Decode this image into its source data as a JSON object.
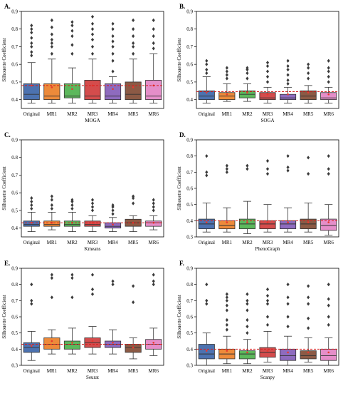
{
  "chart_data": [
    {
      "panel": "A.",
      "type": "box",
      "xlabel": "MOGA",
      "ylabel": "Silhouette Coefficient",
      "ylim": [
        0.35,
        0.9
      ],
      "yticks": [
        0.4,
        0.5,
        0.6,
        0.7,
        0.8,
        0.9
      ],
      "ref_line": 0.48,
      "categories": [
        "Original",
        "MR1",
        "MR2",
        "MR3",
        "MR4",
        "MR5",
        "MR6"
      ],
      "colors": [
        "#4c72b0",
        "#ed8a3a",
        "#5cb85c",
        "#d44c4c",
        "#8e6bbf",
        "#8c5a45",
        "#e58ec9"
      ],
      "boxes": [
        {
          "low": 0.38,
          "q1": 0.4,
          "median": 0.43,
          "q3": 0.49,
          "high": 0.61,
          "mean": 0.48,
          "outliers": [
            0.65,
            0.67,
            0.7,
            0.72,
            0.75,
            0.78,
            0.8,
            0.82
          ]
        },
        {
          "low": 0.38,
          "q1": 0.4,
          "median": 0.42,
          "q3": 0.49,
          "high": 0.63,
          "mean": 0.47,
          "outliers": [
            0.66,
            0.7,
            0.72,
            0.74,
            0.77,
            0.81,
            0.85
          ]
        },
        {
          "low": 0.38,
          "q1": 0.41,
          "median": 0.42,
          "q3": 0.49,
          "high": 0.58,
          "mean": 0.46,
          "outliers": [
            0.66,
            0.71,
            0.76,
            0.79,
            0.82,
            0.84
          ]
        },
        {
          "low": 0.38,
          "q1": 0.4,
          "median": 0.42,
          "q3": 0.51,
          "high": 0.63,
          "mean": 0.48,
          "outliers": [
            0.66,
            0.7,
            0.74,
            0.77,
            0.8,
            0.83,
            0.87
          ]
        },
        {
          "low": 0.38,
          "q1": 0.4,
          "median": 0.42,
          "q3": 0.49,
          "high": 0.53,
          "mean": 0.46,
          "outliers": [
            0.56,
            0.62,
            0.66,
            0.7,
            0.73,
            0.76,
            0.8,
            0.83
          ]
        },
        {
          "low": 0.38,
          "q1": 0.4,
          "median": 0.43,
          "q3": 0.5,
          "high": 0.63,
          "mean": 0.47,
          "outliers": [
            0.66,
            0.7,
            0.72,
            0.76,
            0.8,
            0.85
          ]
        },
        {
          "low": 0.38,
          "q1": 0.4,
          "median": 0.42,
          "q3": 0.51,
          "high": 0.66,
          "mean": 0.48,
          "outliers": [
            0.69,
            0.72,
            0.76,
            0.8,
            0.85
          ]
        }
      ]
    },
    {
      "panel": "B.",
      "type": "box",
      "xlabel": "SOGA",
      "ylabel": "Silhouette Coefficient",
      "ylim": [
        0.35,
        0.9
      ],
      "yticks": [
        0.4,
        0.5,
        0.6,
        0.7,
        0.8,
        0.9
      ],
      "ref_line": 0.445,
      "categories": [
        "Original",
        "MR1",
        "MR2",
        "MR3",
        "MR4",
        "MR5",
        "MR6"
      ],
      "colors": [
        "#4c72b0",
        "#ed8a3a",
        "#5cb85c",
        "#d44c4c",
        "#8e6bbf",
        "#8c5a45",
        "#e58ec9"
      ],
      "boxes": [
        {
          "low": 0.38,
          "q1": 0.4,
          "median": 0.42,
          "q3": 0.45,
          "high": 0.53,
          "mean": 0.44,
          "outliers": [
            0.55,
            0.57,
            0.6,
            0.62
          ]
        },
        {
          "low": 0.39,
          "q1": 0.4,
          "median": 0.42,
          "q3": 0.44,
          "high": 0.49,
          "mean": 0.43,
          "outliers": [
            0.52,
            0.54,
            0.56,
            0.58
          ]
        },
        {
          "low": 0.39,
          "q1": 0.41,
          "median": 0.43,
          "q3": 0.45,
          "high": 0.49,
          "mean": 0.44,
          "outliers": [
            0.52,
            0.55,
            0.57,
            0.58
          ]
        },
        {
          "low": 0.38,
          "q1": 0.4,
          "median": 0.41,
          "q3": 0.44,
          "high": 0.47,
          "mean": 0.43,
          "outliers": [
            0.5,
            0.53,
            0.56,
            0.59,
            0.61
          ]
        },
        {
          "low": 0.38,
          "q1": 0.4,
          "median": 0.41,
          "q3": 0.43,
          "high": 0.47,
          "mean": 0.43,
          "outliers": [
            0.49,
            0.51,
            0.54,
            0.57,
            0.59,
            0.62
          ]
        },
        {
          "low": 0.38,
          "q1": 0.4,
          "median": 0.42,
          "q3": 0.45,
          "high": 0.48,
          "mean": 0.44,
          "outliers": [
            0.52,
            0.55,
            0.58,
            0.6
          ]
        },
        {
          "low": 0.38,
          "q1": 0.4,
          "median": 0.41,
          "q3": 0.44,
          "high": 0.47,
          "mean": 0.43,
          "outliers": [
            0.5,
            0.53,
            0.56,
            0.58,
            0.62
          ]
        }
      ]
    },
    {
      "panel": "C.",
      "type": "box",
      "xlabel": "Kmeans",
      "ylabel": "Silhouette Coefficient",
      "ylim": [
        0.35,
        0.9
      ],
      "yticks": [
        0.4,
        0.5,
        0.6,
        0.7,
        0.8,
        0.9
      ],
      "ref_line": 0.43,
      "categories": [
        "Original",
        "MR1",
        "MR2",
        "MR3",
        "MR4",
        "MR5",
        "MR6"
      ],
      "colors": [
        "#4c72b0",
        "#ed8a3a",
        "#5cb85c",
        "#d44c4c",
        "#8e6bbf",
        "#8c5a45",
        "#e58ec9"
      ],
      "boxes": [
        {
          "low": 0.38,
          "q1": 0.41,
          "median": 0.42,
          "q3": 0.44,
          "high": 0.49,
          "mean": 0.43,
          "outliers": [
            0.51,
            0.53,
            0.55,
            0.57
          ]
        },
        {
          "low": 0.39,
          "q1": 0.41,
          "median": 0.42,
          "q3": 0.44,
          "high": 0.49,
          "mean": 0.43,
          "outliers": [
            0.51,
            0.53,
            0.56,
            0.58
          ]
        },
        {
          "low": 0.38,
          "q1": 0.41,
          "median": 0.42,
          "q3": 0.44,
          "high": 0.49,
          "mean": 0.43,
          "outliers": [
            0.51,
            0.53,
            0.55,
            0.56
          ]
        },
        {
          "low": 0.38,
          "q1": 0.41,
          "median": 0.42,
          "q3": 0.44,
          "high": 0.47,
          "mean": 0.43,
          "outliers": [
            0.5,
            0.52,
            0.54,
            0.56
          ]
        },
        {
          "low": 0.38,
          "q1": 0.4,
          "median": 0.41,
          "q3": 0.43,
          "high": 0.46,
          "mean": 0.42,
          "outliers": [
            0.48,
            0.5,
            0.52,
            0.53
          ]
        },
        {
          "low": 0.38,
          "q1": 0.41,
          "median": 0.43,
          "q3": 0.45,
          "high": 0.47,
          "mean": 0.43,
          "outliers": [
            0.54,
            0.57,
            0.58
          ]
        },
        {
          "low": 0.39,
          "q1": 0.41,
          "median": 0.43,
          "q3": 0.44,
          "high": 0.47,
          "mean": 0.43,
          "outliers": [
            0.5,
            0.52,
            0.54,
            0.56
          ]
        }
      ]
    },
    {
      "panel": "D.",
      "type": "box",
      "xlabel": "PhenoGraph",
      "ylabel": "Silhouette Coefficient",
      "ylim": [
        0.3,
        0.9
      ],
      "yticks": [
        0.3,
        0.4,
        0.5,
        0.6,
        0.7,
        0.8,
        0.9
      ],
      "ref_line": 0.4,
      "categories": [
        "Original",
        "MR1",
        "MR2",
        "MR3",
        "MR4",
        "MR5",
        "MR6"
      ],
      "colors": [
        "#4c72b0",
        "#ed8a3a",
        "#5cb85c",
        "#d44c4c",
        "#8e6bbf",
        "#8c5a45",
        "#e58ec9"
      ],
      "boxes": [
        {
          "low": 0.33,
          "q1": 0.35,
          "median": 0.38,
          "q3": 0.41,
          "high": 0.51,
          "mean": 0.39,
          "outliers": [
            0.68,
            0.7,
            0.8
          ]
        },
        {
          "low": 0.33,
          "q1": 0.35,
          "median": 0.37,
          "q3": 0.4,
          "high": 0.48,
          "mean": 0.39,
          "outliers": [
            0.7,
            0.72,
            0.74
          ]
        },
        {
          "low": 0.32,
          "q1": 0.35,
          "median": 0.38,
          "q3": 0.41,
          "high": 0.52,
          "mean": 0.39,
          "outliers": [
            0.72,
            0.74
          ]
        },
        {
          "low": 0.33,
          "q1": 0.35,
          "median": 0.38,
          "q3": 0.4,
          "high": 0.5,
          "mean": 0.39,
          "outliers": [
            0.69,
            0.72,
            0.77
          ]
        },
        {
          "low": 0.33,
          "q1": 0.35,
          "median": 0.38,
          "q3": 0.4,
          "high": 0.48,
          "mean": 0.39,
          "outliers": [
            0.71,
            0.73,
            0.8
          ]
        },
        {
          "low": 0.33,
          "q1": 0.35,
          "median": 0.38,
          "q3": 0.41,
          "high": 0.51,
          "mean": 0.39,
          "outliers": [
            0.69,
            0.79
          ]
        },
        {
          "low": 0.31,
          "q1": 0.34,
          "median": 0.37,
          "q3": 0.41,
          "high": 0.5,
          "mean": 0.39,
          "outliers": [
            0.69,
            0.72,
            0.8
          ]
        }
      ]
    },
    {
      "panel": "E.",
      "type": "box",
      "xlabel": "Seurat",
      "ylabel": "Silhouette Coefficient",
      "ylim": [
        0.3,
        0.9
      ],
      "yticks": [
        0.3,
        0.4,
        0.5,
        0.6,
        0.7,
        0.8,
        0.9
      ],
      "ref_line": 0.43,
      "categories": [
        "Original",
        "MR1",
        "MR2",
        "MR3",
        "MR4",
        "MR5",
        "MR6"
      ],
      "colors": [
        "#4c72b0",
        "#ed8a3a",
        "#5cb85c",
        "#d44c4c",
        "#8e6bbf",
        "#8c5a45",
        "#e58ec9"
      ],
      "boxes": [
        {
          "low": 0.33,
          "q1": 0.38,
          "median": 0.41,
          "q3": 0.44,
          "high": 0.51,
          "mean": 0.42,
          "outliers": [
            0.68,
            0.7,
            0.8
          ]
        },
        {
          "low": 0.37,
          "q1": 0.4,
          "median": 0.43,
          "q3": 0.47,
          "high": 0.52,
          "mean": 0.45,
          "outliers": [
            0.72,
            0.84,
            0.86
          ]
        },
        {
          "low": 0.37,
          "q1": 0.4,
          "median": 0.43,
          "q3": 0.45,
          "high": 0.53,
          "mean": 0.44,
          "outliers": [
            0.72,
            0.84,
            0.86
          ]
        },
        {
          "low": 0.37,
          "q1": 0.41,
          "median": 0.44,
          "q3": 0.47,
          "high": 0.54,
          "mean": 0.45,
          "outliers": [
            0.74,
            0.77,
            0.86
          ]
        },
        {
          "low": 0.37,
          "q1": 0.41,
          "median": 0.43,
          "q3": 0.45,
          "high": 0.52,
          "mean": 0.44,
          "outliers": [
            0.8,
            0.82
          ]
        },
        {
          "low": 0.34,
          "q1": 0.38,
          "median": 0.41,
          "q3": 0.43,
          "high": 0.47,
          "mean": 0.41,
          "outliers": [
            0.69,
            0.79
          ]
        },
        {
          "low": 0.36,
          "q1": 0.4,
          "median": 0.43,
          "q3": 0.46,
          "high": 0.53,
          "mean": 0.44,
          "outliers": [
            0.8,
            0.82,
            0.86
          ]
        }
      ]
    },
    {
      "panel": "F.",
      "type": "box",
      "xlabel": "Scanpy",
      "ylabel": "Silhouette Coefficient",
      "ylim": [
        0.3,
        0.9
      ],
      "yticks": [
        0.3,
        0.4,
        0.5,
        0.6,
        0.7,
        0.8,
        0.9
      ],
      "ref_line": 0.4,
      "categories": [
        "Original",
        "MR1",
        "MR2",
        "MR3",
        "MR4",
        "MR5",
        "MR6"
      ],
      "colors": [
        "#4c72b0",
        "#ed8a3a",
        "#5cb85c",
        "#d44c4c",
        "#8e6bbf",
        "#8c5a45",
        "#e58ec9"
      ],
      "boxes": [
        {
          "low": 0.3,
          "q1": 0.34,
          "median": 0.37,
          "q3": 0.43,
          "high": 0.5,
          "mean": 0.39,
          "outliers": [
            0.68,
            0.7,
            0.8
          ]
        },
        {
          "low": 0.31,
          "q1": 0.34,
          "median": 0.37,
          "q3": 0.4,
          "high": 0.48,
          "mean": 0.39,
          "outliers": [
            0.52,
            0.55,
            0.58,
            0.64,
            0.67,
            0.7,
            0.72,
            0.74
          ]
        },
        {
          "low": 0.31,
          "q1": 0.34,
          "median": 0.37,
          "q3": 0.39,
          "high": 0.46,
          "mean": 0.38,
          "outliers": [
            0.5,
            0.54,
            0.58,
            0.64,
            0.68,
            0.7,
            0.74
          ]
        },
        {
          "low": 0.32,
          "q1": 0.35,
          "median": 0.38,
          "q3": 0.41,
          "high": 0.51,
          "mean": 0.39,
          "outliers": [
            0.55,
            0.6,
            0.68,
            0.7,
            0.73,
            0.77
          ]
        },
        {
          "low": 0.3,
          "q1": 0.33,
          "median": 0.36,
          "q3": 0.4,
          "high": 0.48,
          "mean": 0.38,
          "outliers": [
            0.54,
            0.6,
            0.68,
            0.72,
            0.8
          ]
        },
        {
          "low": 0.32,
          "q1": 0.34,
          "median": 0.36,
          "q3": 0.39,
          "high": 0.47,
          "mean": 0.38,
          "outliers": [
            0.53,
            0.59,
            0.68,
            0.72,
            0.79
          ]
        },
        {
          "low": 0.3,
          "q1": 0.33,
          "median": 0.36,
          "q3": 0.4,
          "high": 0.47,
          "mean": 0.38,
          "outliers": [
            0.55,
            0.6,
            0.67,
            0.71,
            0.8
          ]
        }
      ]
    }
  ]
}
